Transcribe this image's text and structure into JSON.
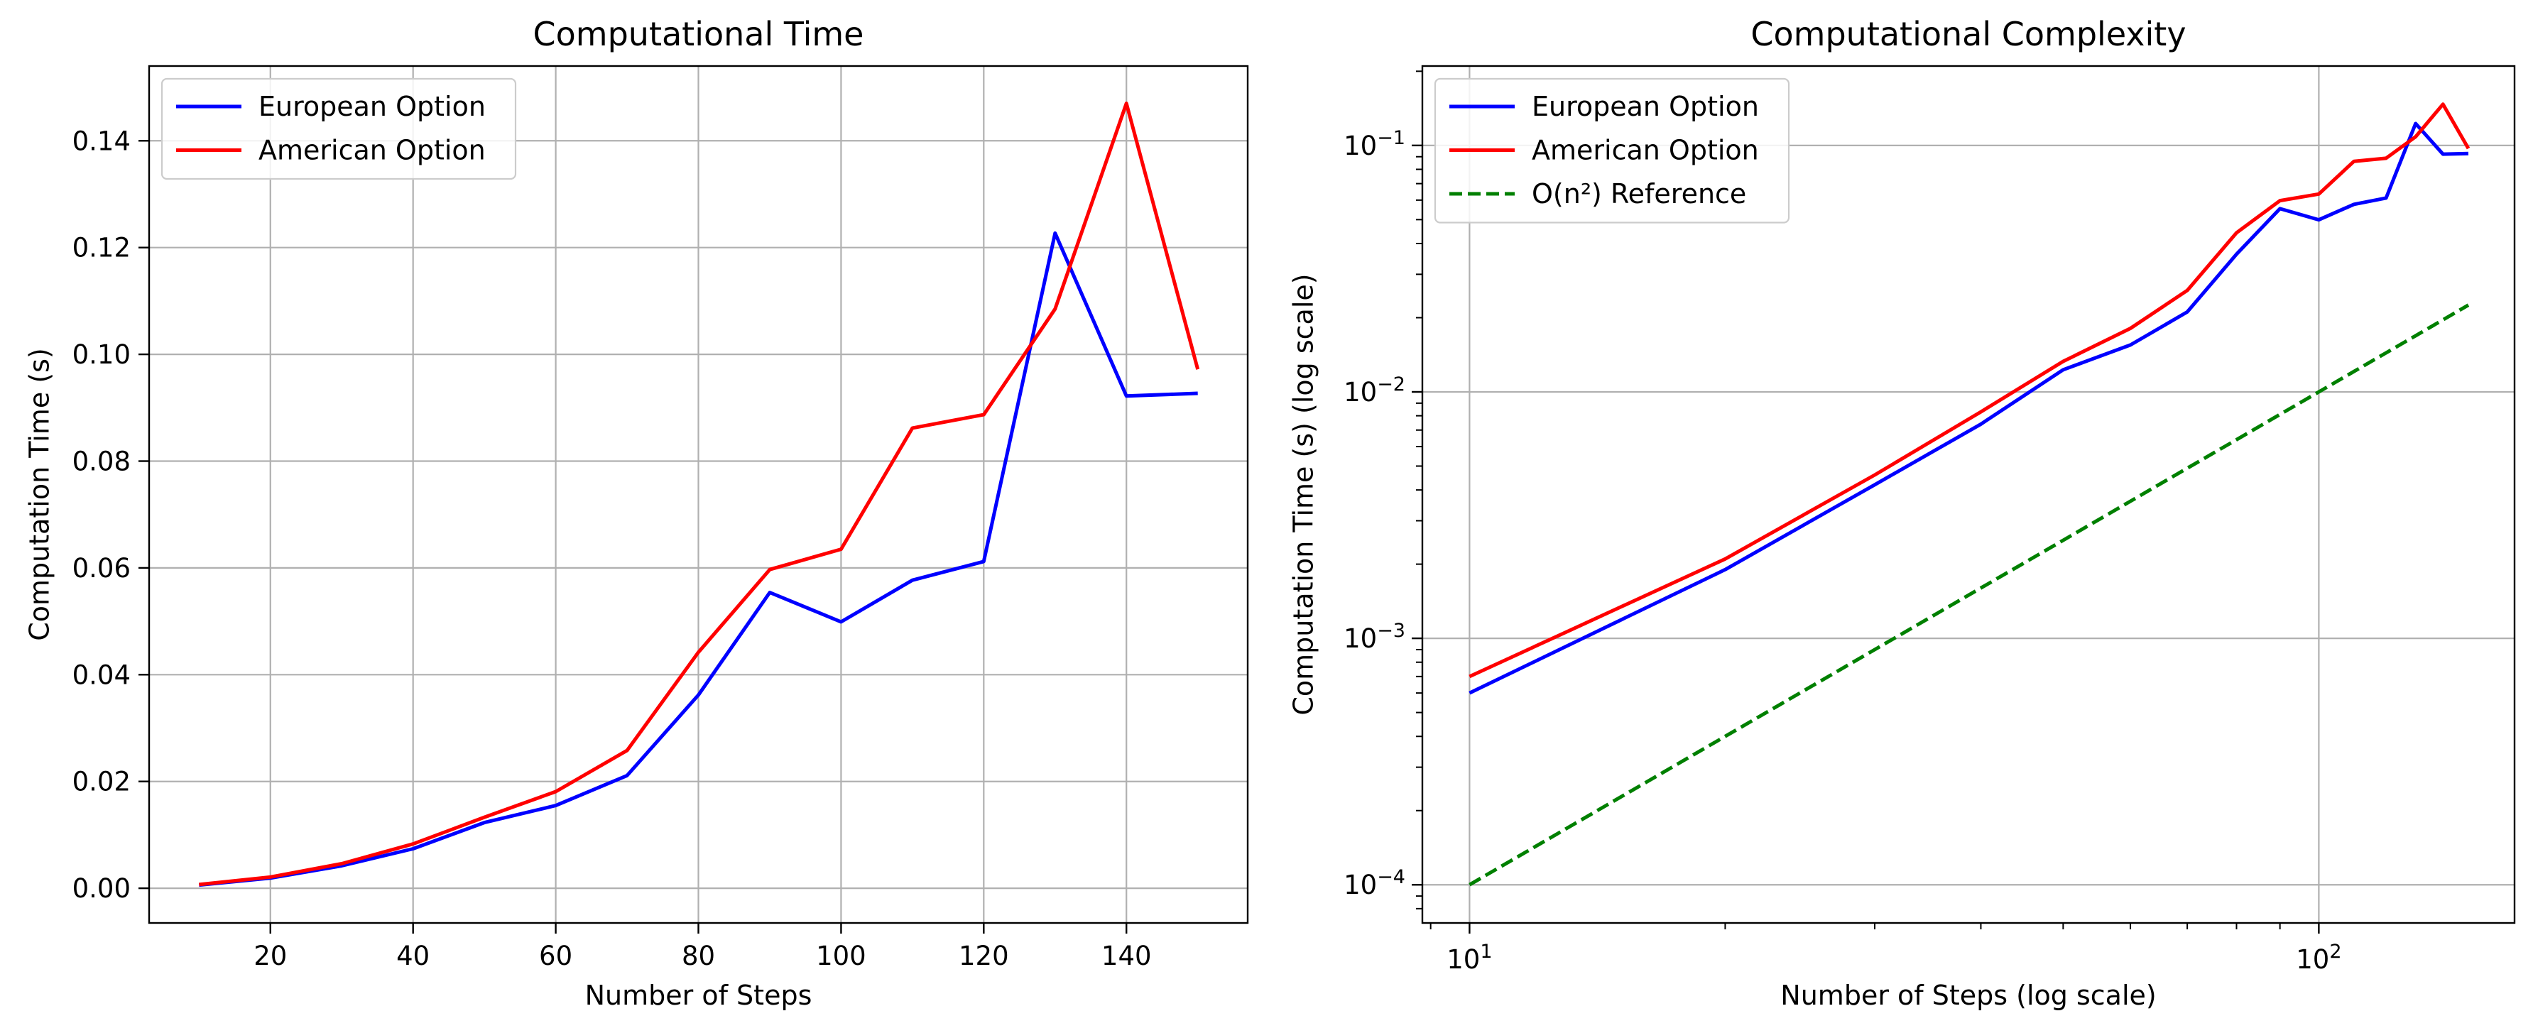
{
  "chart_data": [
    {
      "type": "line",
      "title": "Computational Time",
      "xlabel": "Number of Steps",
      "ylabel": "Computation Time (s)",
      "xscale": "linear",
      "yscale": "linear",
      "xlim": [
        3,
        157
      ],
      "ylim": [
        -0.0065,
        0.154
      ],
      "xticks": [
        20,
        40,
        60,
        80,
        100,
        120,
        140
      ],
      "xtick_labels": [
        "20",
        "40",
        "60",
        "80",
        "100",
        "120",
        "140"
      ],
      "yticks": [
        0,
        0.02,
        0.04,
        0.06,
        0.08,
        0.1,
        0.12,
        0.14
      ],
      "ytick_labels": [
        "0.00",
        "0.02",
        "0.04",
        "0.06",
        "0.08",
        "0.10",
        "0.12",
        "0.14"
      ],
      "grid": true,
      "legend_position": "upper left",
      "series": [
        {
          "name": "European Option",
          "color": "#0000ff",
          "style": "solid",
          "x": [
            10,
            20,
            30,
            40,
            50,
            60,
            70,
            80,
            90,
            100,
            110,
            120,
            130,
            140,
            150
          ],
          "y": [
            0.0006,
            0.0019,
            0.0042,
            0.0074,
            0.0123,
            0.0155,
            0.0211,
            0.0362,
            0.0554,
            0.0499,
            0.0577,
            0.0612,
            0.1227,
            0.0922,
            0.0927
          ]
        },
        {
          "name": "American Option",
          "color": "#ff0000",
          "style": "solid",
          "x": [
            10,
            20,
            30,
            40,
            50,
            60,
            70,
            80,
            90,
            100,
            110,
            120,
            130,
            140,
            150
          ],
          "y": [
            0.0007,
            0.0021,
            0.0046,
            0.0083,
            0.0133,
            0.0181,
            0.0258,
            0.0442,
            0.0597,
            0.0635,
            0.0862,
            0.0887,
            0.1085,
            0.147,
            0.0972
          ]
        }
      ]
    },
    {
      "type": "line",
      "title": "Computational Complexity",
      "xlabel": "Number of Steps (log scale)",
      "ylabel": "Computation Time (s) (log scale)",
      "xscale": "log",
      "yscale": "log",
      "xlim": [
        8.8,
        170
      ],
      "ylim": [
        7e-05,
        0.21
      ],
      "xticks": [
        10,
        100
      ],
      "xtick_labels": [
        {
          "base": "10",
          "exp": "1"
        },
        {
          "base": "10",
          "exp": "2"
        }
      ],
      "yticks": [
        0.0001,
        0.001,
        0.01,
        0.1
      ],
      "ytick_labels": [
        {
          "base": "10",
          "exp": "−4"
        },
        {
          "base": "10",
          "exp": "−3"
        },
        {
          "base": "10",
          "exp": "−2"
        },
        {
          "base": "10",
          "exp": "−1"
        }
      ],
      "grid": true,
      "legend_position": "upper left",
      "series": [
        {
          "name": "European Option",
          "color": "#0000ff",
          "style": "solid",
          "x": [
            10,
            20,
            30,
            40,
            50,
            60,
            70,
            80,
            90,
            100,
            110,
            120,
            130,
            140,
            150
          ],
          "y": [
            0.0006,
            0.0019,
            0.0042,
            0.0074,
            0.0123,
            0.0155,
            0.0211,
            0.0362,
            0.0554,
            0.0499,
            0.0577,
            0.0612,
            0.1227,
            0.0922,
            0.0927
          ]
        },
        {
          "name": "American Option",
          "color": "#ff0000",
          "style": "solid",
          "x": [
            10,
            20,
            30,
            40,
            50,
            60,
            70,
            80,
            90,
            100,
            110,
            120,
            130,
            140,
            150
          ],
          "y": [
            0.0007,
            0.0021,
            0.0046,
            0.0083,
            0.0133,
            0.0181,
            0.0258,
            0.0442,
            0.0597,
            0.0635,
            0.0862,
            0.0887,
            0.1085,
            0.147,
            0.0972
          ]
        },
        {
          "name": "O(n²) Reference",
          "color": "#008000",
          "style": "dashed",
          "x": [
            10,
            20,
            30,
            40,
            50,
            60,
            70,
            80,
            90,
            100,
            110,
            120,
            130,
            140,
            150
          ],
          "y": [
            0.0001,
            0.0004,
            0.0009,
            0.0016,
            0.0025,
            0.0036,
            0.0049,
            0.0064,
            0.0081,
            0.01,
            0.0121,
            0.0144,
            0.0169,
            0.0196,
            0.0225
          ]
        }
      ]
    }
  ]
}
